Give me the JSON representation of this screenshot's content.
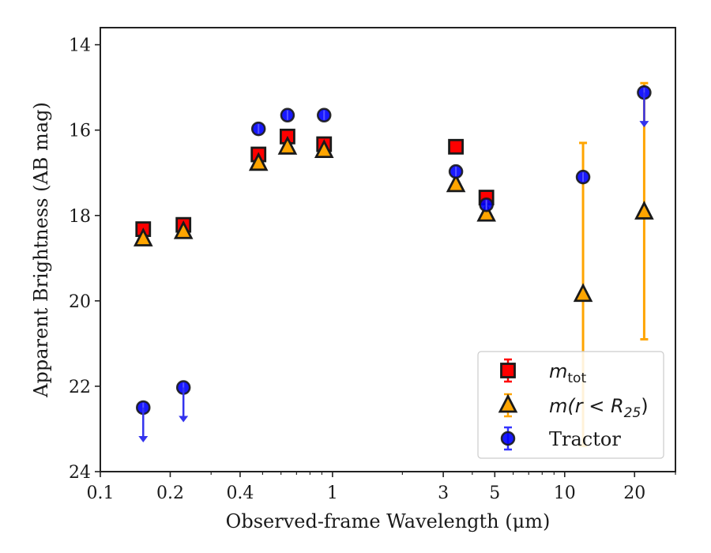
{
  "chart_data": {
    "type": "scatter",
    "xlabel": "Observed-frame Wavelength (μm)",
    "ylabel": "Apparent Brightness (AB mag)",
    "xscale": "log",
    "xlim": [
      0.1,
      30
    ],
    "ylim": [
      24,
      13.6
    ],
    "y_inverted": true,
    "xticks": [
      0.1,
      0.2,
      0.4,
      1,
      3,
      5,
      10,
      20
    ],
    "xtick_labels": [
      "0.1",
      "0.2",
      "0.4",
      "1",
      "3",
      "5",
      "10",
      "20"
    ],
    "yticks": [
      14,
      16,
      18,
      20,
      22,
      24
    ],
    "ytick_labels": [
      "14",
      "16",
      "18",
      "20",
      "22",
      "24"
    ],
    "grid": false,
    "legend_position": "bottom-right",
    "series": [
      {
        "name": "m_tot",
        "legend_main": "m",
        "legend_sub": "tot",
        "marker": "square",
        "color": "#ff0000",
        "errorbar_color": "#ff0000",
        "points": [
          {
            "x": 0.153,
            "y": 18.32
          },
          {
            "x": 0.228,
            "y": 18.22
          },
          {
            "x": 0.48,
            "y": 16.57
          },
          {
            "x": 0.64,
            "y": 16.15
          },
          {
            "x": 0.92,
            "y": 16.33
          },
          {
            "x": 3.4,
            "y": 16.39
          },
          {
            "x": 4.6,
            "y": 17.58
          }
        ]
      },
      {
        "name": "m(r < R25)",
        "legend_main": "m(r < R",
        "legend_sub": "25",
        "legend_close": ")",
        "marker": "triangle",
        "color": "#ffa500",
        "errorbar_color": "#ffa500",
        "points": [
          {
            "x": 0.153,
            "y": 18.55
          },
          {
            "x": 0.228,
            "y": 18.38
          },
          {
            "x": 0.48,
            "y": 16.78
          },
          {
            "x": 0.64,
            "y": 16.4
          },
          {
            "x": 0.92,
            "y": 16.48
          },
          {
            "x": 3.4,
            "y": 17.28
          },
          {
            "x": 4.6,
            "y": 17.97
          },
          {
            "x": 12.0,
            "y": 19.85,
            "yerr_low": 16.3,
            "yerr_high": 23.4
          },
          {
            "x": 22.0,
            "y": 17.92,
            "yerr_low": 14.9,
            "yerr_high": 20.9
          }
        ]
      },
      {
        "name": "Tractor",
        "legend_main": "Tractor",
        "marker": "circle",
        "color": "#0000ff",
        "errorbar_color": "#3333ff",
        "points": [
          {
            "x": 0.153,
            "y": 22.5,
            "upper_limit": true
          },
          {
            "x": 0.228,
            "y": 22.03,
            "upper_limit": true
          },
          {
            "x": 0.48,
            "y": 15.97
          },
          {
            "x": 0.64,
            "y": 15.65
          },
          {
            "x": 0.92,
            "y": 15.65
          },
          {
            "x": 3.4,
            "y": 16.97
          },
          {
            "x": 4.6,
            "y": 17.75
          },
          {
            "x": 12.0,
            "y": 17.1
          },
          {
            "x": 22.0,
            "y": 15.12,
            "upper_limit": true
          }
        ]
      }
    ]
  }
}
